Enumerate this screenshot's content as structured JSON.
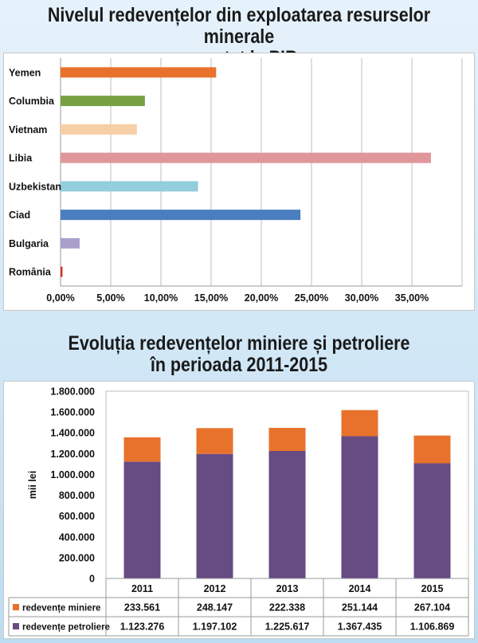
{
  "chart_data": [
    {
      "type": "bar",
      "orientation": "horizontal",
      "title": "Nivelul redevențelor din exploatarea resurselor minerale raportat la PIB",
      "title_lines": [
        "Nivelul redevențelor din exploatarea resurselor minerale",
        "raportat la PIB"
      ],
      "categories": [
        "Yemen",
        "Columbia",
        "Vietnam",
        "Libia",
        "Uzbekistan",
        "Ciad",
        "Bulgaria",
        "România"
      ],
      "values": [
        0.155,
        0.084,
        0.076,
        0.369,
        0.137,
        0.239,
        0.019,
        0.002
      ],
      "colors": [
        "#e8722c",
        "#77a043",
        "#f7cfa6",
        "#e0979c",
        "#92cedb",
        "#4a7ebf",
        "#aa9fca",
        "#d9342b"
      ],
      "xticks": [
        "0,00%",
        "5,00%",
        "10,00%",
        "15,00%",
        "20,00%",
        "25,00%",
        "30,00%",
        "35,00%"
      ],
      "xlim": [
        0,
        0.4
      ],
      "grid": true,
      "legend": "none"
    },
    {
      "type": "bar",
      "stacked": true,
      "title": "Evoluția redevențelor miniere și petroliere în perioada 2011-2015",
      "title_lines": [
        "Evoluția redevențelor miniere și petroliere",
        "în perioada 2011-2015"
      ],
      "categories": [
        "2011",
        "2012",
        "2013",
        "2014",
        "2015"
      ],
      "ylabel": "mii lei",
      "ylim": [
        0,
        1800000
      ],
      "yticks": [
        "0",
        "200.000",
        "400.000",
        "600.000",
        "800.000",
        "1.000.000",
        "1.200.000",
        "1.400.000",
        "1.600.000",
        "1.800.000"
      ],
      "series": [
        {
          "name": "redevențe petroliere",
          "color": "#674b83",
          "values": [
            1123276,
            1197102,
            1225617,
            1367435,
            1106869
          ],
          "labels": [
            "1.123.276",
            "1.197.102",
            "1.225.617",
            "1.367.435",
            "1.106.869"
          ]
        },
        {
          "name": "redevențe miniere",
          "color": "#e8722c",
          "values": [
            233561,
            248147,
            222338,
            251144,
            267104
          ],
          "labels": [
            "233.561",
            "248.147",
            "222.338",
            "251.144",
            "267.104"
          ]
        }
      ],
      "grid": false,
      "legend": "data-table-below"
    }
  ]
}
